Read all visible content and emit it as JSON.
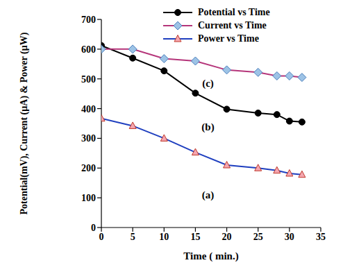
{
  "chart_data": {
    "type": "line",
    "x_label": "Time ( min.)",
    "y_label": "Potential(mV), Current (µA) & Power (µW)",
    "x": [
      0,
      5,
      10,
      15,
      20,
      25,
      28,
      30,
      32
    ],
    "series": [
      {
        "name": "Potential vs Time",
        "color": "#000000",
        "marker": "circle",
        "values": [
          612,
          570,
          527,
          452,
          398,
          385,
          380,
          358,
          355
        ]
      },
      {
        "name": "Current vs Time",
        "color": "#b5357a",
        "marker": "diamond",
        "values": [
          600,
          600,
          568,
          560,
          530,
          522,
          510,
          510,
          505
        ]
      },
      {
        "name": "Power vs Time",
        "color": "#1f3fbf",
        "marker": "triangle",
        "values": [
          367,
          342,
          300,
          253,
          210,
          200,
          192,
          182,
          178
        ]
      }
    ],
    "xlim": [
      0,
      35
    ],
    "xticks": [
      0,
      5,
      10,
      15,
      20,
      25,
      30,
      35
    ],
    "ylim": [
      0,
      700
    ],
    "yticks": [
      0,
      100,
      200,
      300,
      400,
      500,
      600,
      700
    ],
    "grid": false,
    "legend": "upper right",
    "annotations": [
      {
        "text": "(c)",
        "x": 17,
        "y": 485
      },
      {
        "text": "(b)",
        "x": 17,
        "y": 340
      },
      {
        "text": "(a)",
        "x": 17,
        "y": 110
      }
    ]
  }
}
